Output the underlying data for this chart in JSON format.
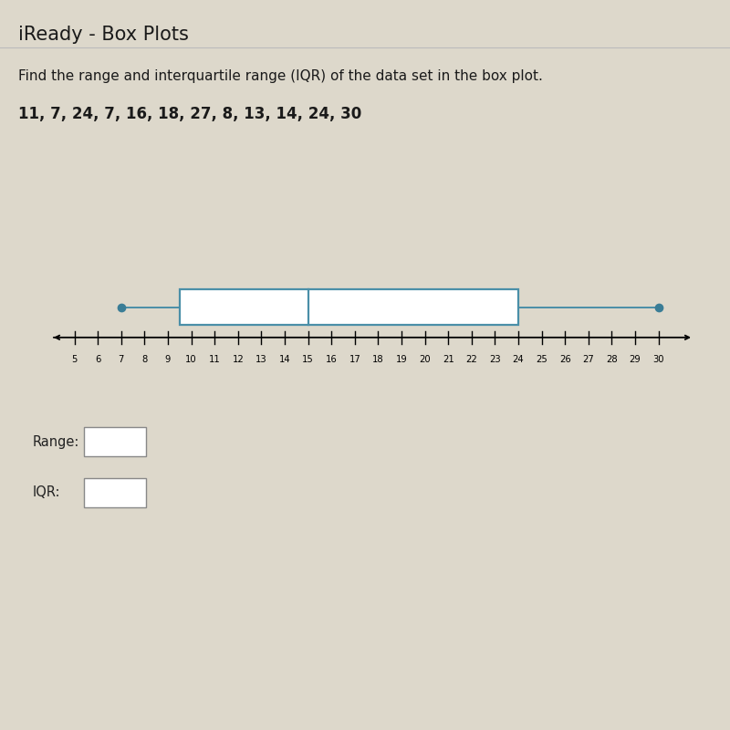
{
  "title": "iReady - Box Plots",
  "question": "Find the range and interquartile range (IQR) of the data set in the box plot.",
  "dataset_label": "11, 7, 24, 7, 16, 18, 27, 8, 13, 14, 24, 30",
  "data": [
    11,
    7,
    24,
    7,
    16,
    18,
    27,
    8,
    13,
    14,
    24,
    30
  ],
  "min_val": 7,
  "q1": 9.5,
  "median": 15,
  "q3": 24,
  "max_val": 30,
  "axis_min": 4,
  "axis_max": 31.5,
  "axis_ticks": [
    5,
    6,
    7,
    8,
    9,
    10,
    11,
    12,
    13,
    14,
    15,
    16,
    17,
    18,
    19,
    20,
    21,
    22,
    23,
    24,
    25,
    26,
    27,
    28,
    29,
    30
  ],
  "box_color": "#4a8fa8",
  "whisker_color": "#4a8fa8",
  "dot_color": "#3a7d96",
  "range_label": "Range:",
  "iqr_label": "IQR:",
  "background_color": "#ddd8cb",
  "title_fontsize": 15,
  "question_fontsize": 11,
  "dataset_fontsize": 12
}
